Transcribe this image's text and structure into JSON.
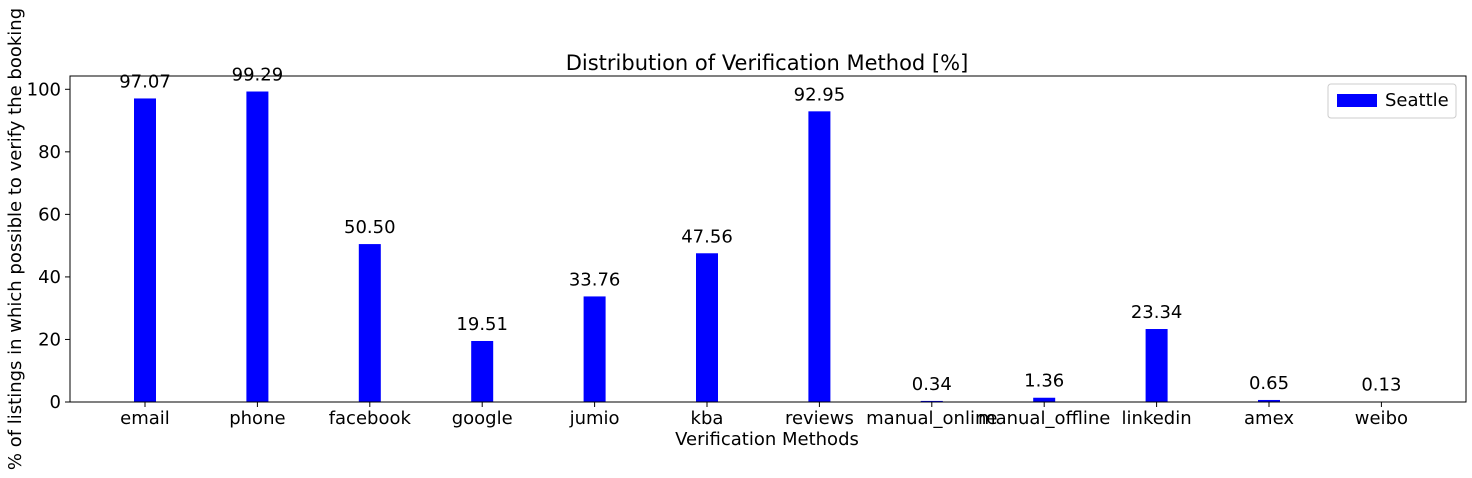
{
  "chart_data": {
    "type": "bar",
    "title": "Distribution of Verification Method [%]",
    "xlabel": "Verification Methods",
    "ylabel": "% of listings in which possible to verify the booking",
    "categories": [
      "email",
      "phone",
      "facebook",
      "google",
      "jumio",
      "kba",
      "reviews",
      "manual_online",
      "manual_offline",
      "linkedin",
      "amex",
      "weibo"
    ],
    "series": [
      {
        "name": "Seattle",
        "color": "#0000ff",
        "values": [
          97.07,
          99.29,
          50.5,
          19.51,
          33.76,
          47.56,
          92.95,
          0.34,
          1.36,
          23.34,
          0.65,
          0.13
        ]
      }
    ],
    "data_labels": [
      "97.07",
      "99.29",
      "50.50",
      "19.51",
      "33.76",
      "47.56",
      "92.95",
      "0.34",
      "1.36",
      "23.34",
      "0.65",
      "0.13"
    ],
    "yticks": [
      0,
      20,
      40,
      60,
      80,
      100
    ],
    "ylim": [
      0,
      104.25
    ],
    "grid": false,
    "legend_position": "top-right"
  }
}
